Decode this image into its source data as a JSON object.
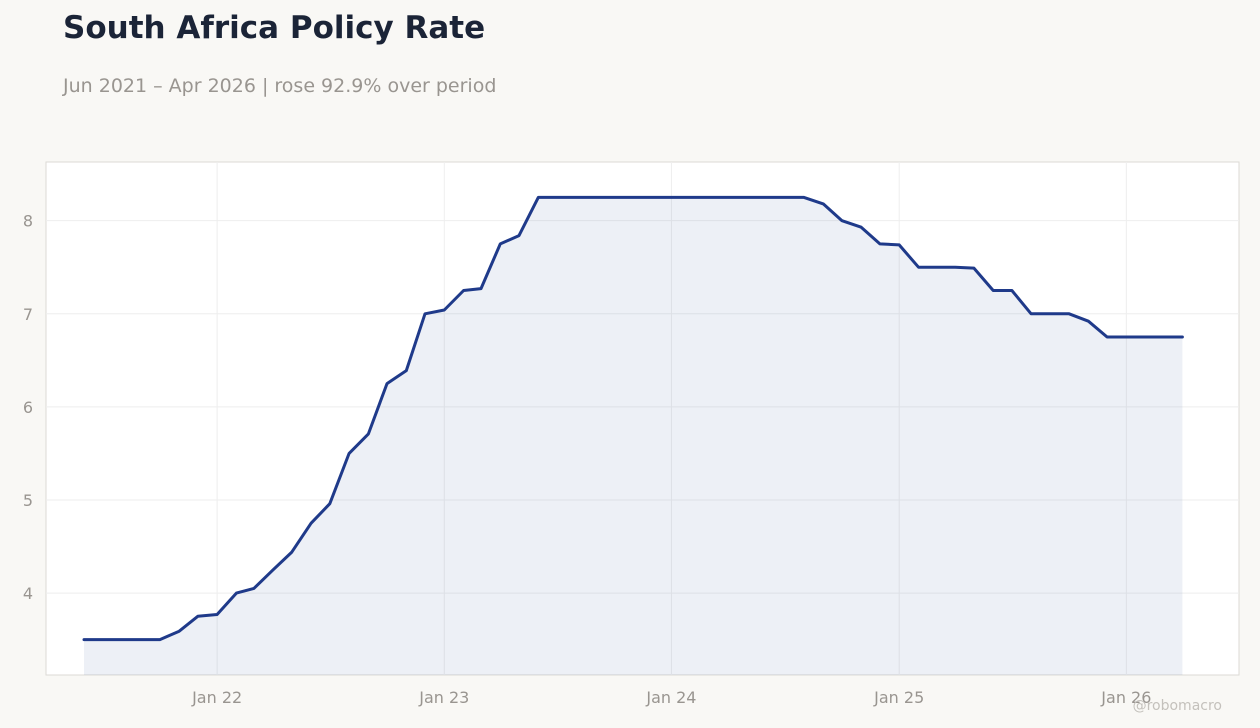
{
  "header": {
    "title": "South Africa Policy Rate",
    "subtitle": "Jun 2021 – Apr 2026 | rose 92.9% over period"
  },
  "watermark": "@robomacro",
  "colors": {
    "background": "#f9f8f5",
    "plot_background": "#ffffff",
    "line": "#1f3a8a",
    "fill": "#1f3a8a",
    "grid": "#eeeeee",
    "text_muted": "#999590",
    "title": "#1b2437"
  },
  "chart_data": {
    "type": "area",
    "title": "South Africa Policy Rate",
    "subtitle": "Jun 2021 – Apr 2026 | rose 92.9% over period",
    "xlabel": "",
    "ylabel": "",
    "x_ticks": [
      {
        "label": "Jan 22",
        "date": "2022-01"
      },
      {
        "label": "Jan 23",
        "date": "2023-01"
      },
      {
        "label": "Jan 24",
        "date": "2024-01"
      },
      {
        "label": "Jan 25",
        "date": "2025-01"
      },
      {
        "label": "Jan 26",
        "date": "2026-01"
      }
    ],
    "y_ticks": [
      4,
      5,
      6,
      7,
      8
    ],
    "xlim": [
      "2021-04-01",
      "2026-07-01"
    ],
    "ylim": [
      3.12,
      8.63
    ],
    "grid": true,
    "legend": "none",
    "series": [
      {
        "x": [
          "2021-06",
          "2021-07",
          "2021-08",
          "2021-09",
          "2021-10",
          "2021-11",
          "2021-12",
          "2022-01",
          "2022-02",
          "2022-03",
          "2022-04",
          "2022-05",
          "2022-06",
          "2022-07",
          "2022-08",
          "2022-09",
          "2022-10",
          "2022-11",
          "2022-12",
          "2023-01",
          "2023-02",
          "2023-03",
          "2023-04",
          "2023-05",
          "2023-06",
          "2023-07",
          "2023-08",
          "2023-09",
          "2023-10",
          "2023-11",
          "2023-12",
          "2024-01",
          "2024-02",
          "2024-03",
          "2024-04",
          "2024-05",
          "2024-06",
          "2024-07",
          "2024-08",
          "2024-09",
          "2024-10",
          "2024-11",
          "2024-12",
          "2025-01",
          "2025-02",
          "2025-03",
          "2025-04",
          "2025-05",
          "2025-06",
          "2025-07",
          "2025-08",
          "2025-09",
          "2025-10",
          "2025-11",
          "2025-12",
          "2026-01",
          "2026-02",
          "2026-03",
          "2026-04"
        ],
        "values": [
          3.5,
          3.5,
          3.5,
          3.5,
          3.5,
          3.59,
          3.75,
          3.77,
          4.0,
          4.05,
          4.25,
          4.44,
          4.75,
          4.96,
          5.5,
          5.71,
          6.25,
          6.39,
          7.0,
          7.04,
          7.25,
          7.27,
          7.75,
          7.84,
          8.25,
          8.25,
          8.25,
          8.25,
          8.25,
          8.25,
          8.25,
          8.25,
          8.25,
          8.25,
          8.25,
          8.25,
          8.25,
          8.25,
          8.25,
          8.18,
          8.0,
          7.93,
          7.75,
          7.74,
          7.5,
          7.5,
          7.5,
          7.49,
          7.25,
          7.25,
          7.0,
          7.0,
          7.0,
          6.92,
          6.75,
          6.75,
          6.75,
          6.75,
          6.75
        ]
      }
    ]
  }
}
